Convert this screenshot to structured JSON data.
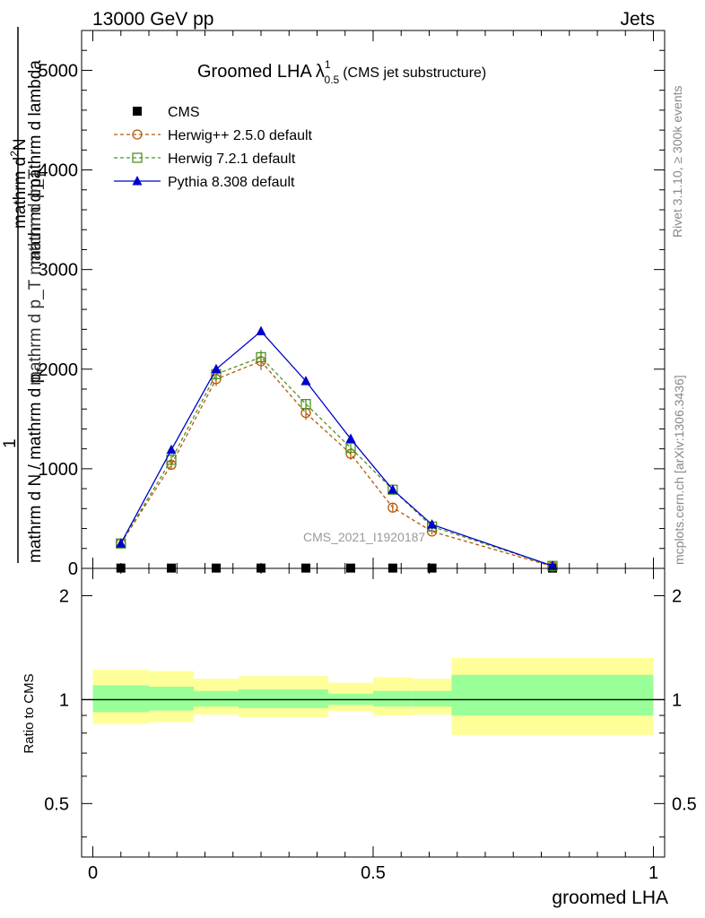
{
  "header": {
    "left": "13000 GeV pp",
    "right": "Jets"
  },
  "side": {
    "rivet": "Rivet 3.1.10, ≥ 300k events",
    "mcplots": "mcplots.cern.ch [arXiv:1306.3436]"
  },
  "title": {
    "main": "Groomed LHA",
    "lambda": "λ",
    "sup": "1",
    "sub": "0.5",
    "suffix": "(CMS jet substructure)"
  },
  "watermark": "CMS_2021_I1920187",
  "ylabel_main": {
    "line1": "mathrm d",
    "line1_sup": "2",
    "line1_tail": "N",
    "frac_num": "1",
    "frac_den": "mathrm d N / mathrm d p",
    "frac_den_sub": "T",
    "den_part1": "mathrm d p",
    "den_part1_sub": "T",
    "den_part2": "mathrm d lambda",
    "mid_fragment": "mathrm d p_T mathrm d p_T"
  },
  "ylabel_ratio": "Ratio to CMS",
  "xlabel": "groomed LHA",
  "legend": [
    {
      "label": "CMS",
      "color": "#000000",
      "marker": "square-filled"
    },
    {
      "label": "Herwig++ 2.5.0 default",
      "color": "#b35806",
      "marker": "circle-open"
    },
    {
      "label": "Herwig 7.2.1 default",
      "color": "#4d9221",
      "marker": "square-open"
    },
    {
      "label": "Pythia 8.308 default",
      "color": "#0000cc",
      "marker": "triangle-filled"
    }
  ],
  "chart_data": [
    {
      "type": "line",
      "title": "Groomed LHA λ^1_0.5 (CMS jet substructure)",
      "xlabel": "groomed LHA",
      "ylabel": "1 / (mathrm d N / mathrm d p_T) · mathrm d^2N / (mathrm d p_T mathrm d lambda)",
      "xlim": [
        -0.02,
        1.02
      ],
      "ylim": [
        0,
        5400
      ],
      "yticks": [
        {
          "value": 0,
          "label": "0"
        },
        {
          "value": 1000,
          "label": "1000"
        },
        {
          "value": 2000,
          "label": "2000"
        },
        {
          "value": 3000,
          "label": "3000"
        },
        {
          "value": 4000,
          "label": "4000"
        },
        {
          "value": 5000,
          "label": "5000"
        }
      ],
      "series": [
        {
          "name": "CMS",
          "x": [
            0.05,
            0.14,
            0.22,
            0.3,
            0.38,
            0.46,
            0.535,
            0.605,
            0.82
          ],
          "y": [
            3,
            3,
            3,
            3,
            3,
            3,
            3,
            3,
            3
          ]
        },
        {
          "name": "Herwig++ 2.5.0 default",
          "x": [
            0.05,
            0.14,
            0.22,
            0.3,
            0.38,
            0.46,
            0.535,
            0.605,
            0.82
          ],
          "y": [
            250,
            1040,
            1900,
            2080,
            1560,
            1150,
            610,
            370,
            20
          ],
          "err": [
            20,
            50,
            70,
            90,
            70,
            60,
            40,
            30,
            5
          ]
        },
        {
          "name": "Herwig 7.2.1 default",
          "x": [
            0.05,
            0.14,
            0.22,
            0.3,
            0.38,
            0.46,
            0.535,
            0.605,
            0.82
          ],
          "y": [
            250,
            1090,
            1950,
            2120,
            1650,
            1210,
            790,
            420,
            25
          ],
          "err": [
            20,
            40,
            60,
            70,
            50,
            40,
            30,
            25,
            5
          ]
        },
        {
          "name": "Pythia 8.308 default",
          "x": [
            0.05,
            0.14,
            0.22,
            0.3,
            0.38,
            0.46,
            0.535,
            0.605,
            0.82
          ],
          "y": [
            250,
            1190,
            2000,
            2380,
            1880,
            1300,
            790,
            440,
            25
          ]
        }
      ]
    },
    {
      "type": "area",
      "title": "Ratio to CMS",
      "xlabel": "groomed LHA",
      "ylabel": "Ratio to CMS",
      "xlim": [
        -0.02,
        1.02
      ],
      "ylim": [
        0.35,
        2.4
      ],
      "scale": "log",
      "yticks": [
        {
          "value": 0.5,
          "label": "0.5"
        },
        {
          "value": 1,
          "label": "1"
        },
        {
          "value": 2,
          "label": "2"
        }
      ],
      "xticks": [
        {
          "value": 0,
          "label": "0"
        },
        {
          "value": 0.5,
          "label": "0.5"
        },
        {
          "value": 1,
          "label": "1"
        }
      ],
      "bins": [
        {
          "lo": 0.0,
          "hi": 0.1,
          "stat_lo": 0.92,
          "stat_hi": 1.1,
          "tot_lo": 0.85,
          "tot_hi": 1.22
        },
        {
          "lo": 0.1,
          "hi": 0.18,
          "stat_lo": 0.93,
          "stat_hi": 1.09,
          "tot_lo": 0.86,
          "tot_hi": 1.21
        },
        {
          "lo": 0.18,
          "hi": 0.26,
          "stat_lo": 0.955,
          "stat_hi": 1.06,
          "tot_lo": 0.905,
          "tot_hi": 1.15
        },
        {
          "lo": 0.26,
          "hi": 0.34,
          "stat_lo": 0.945,
          "stat_hi": 1.07,
          "tot_lo": 0.89,
          "tot_hi": 1.17
        },
        {
          "lo": 0.34,
          "hi": 0.42,
          "stat_lo": 0.945,
          "stat_hi": 1.07,
          "tot_lo": 0.89,
          "tot_hi": 1.17
        },
        {
          "lo": 0.42,
          "hi": 0.5,
          "stat_lo": 0.965,
          "stat_hi": 1.04,
          "tot_lo": 0.925,
          "tot_hi": 1.12
        },
        {
          "lo": 0.5,
          "hi": 0.57,
          "stat_lo": 0.955,
          "stat_hi": 1.06,
          "tot_lo": 0.9,
          "tot_hi": 1.16
        },
        {
          "lo": 0.57,
          "hi": 0.64,
          "stat_lo": 0.955,
          "stat_hi": 1.06,
          "tot_lo": 0.905,
          "tot_hi": 1.15
        },
        {
          "lo": 0.64,
          "hi": 1.0,
          "stat_lo": 0.9,
          "stat_hi": 1.18,
          "tot_lo": 0.79,
          "tot_hi": 1.32
        }
      ],
      "stat_color": "#99ff99",
      "tot_color": "#ffff99"
    }
  ]
}
